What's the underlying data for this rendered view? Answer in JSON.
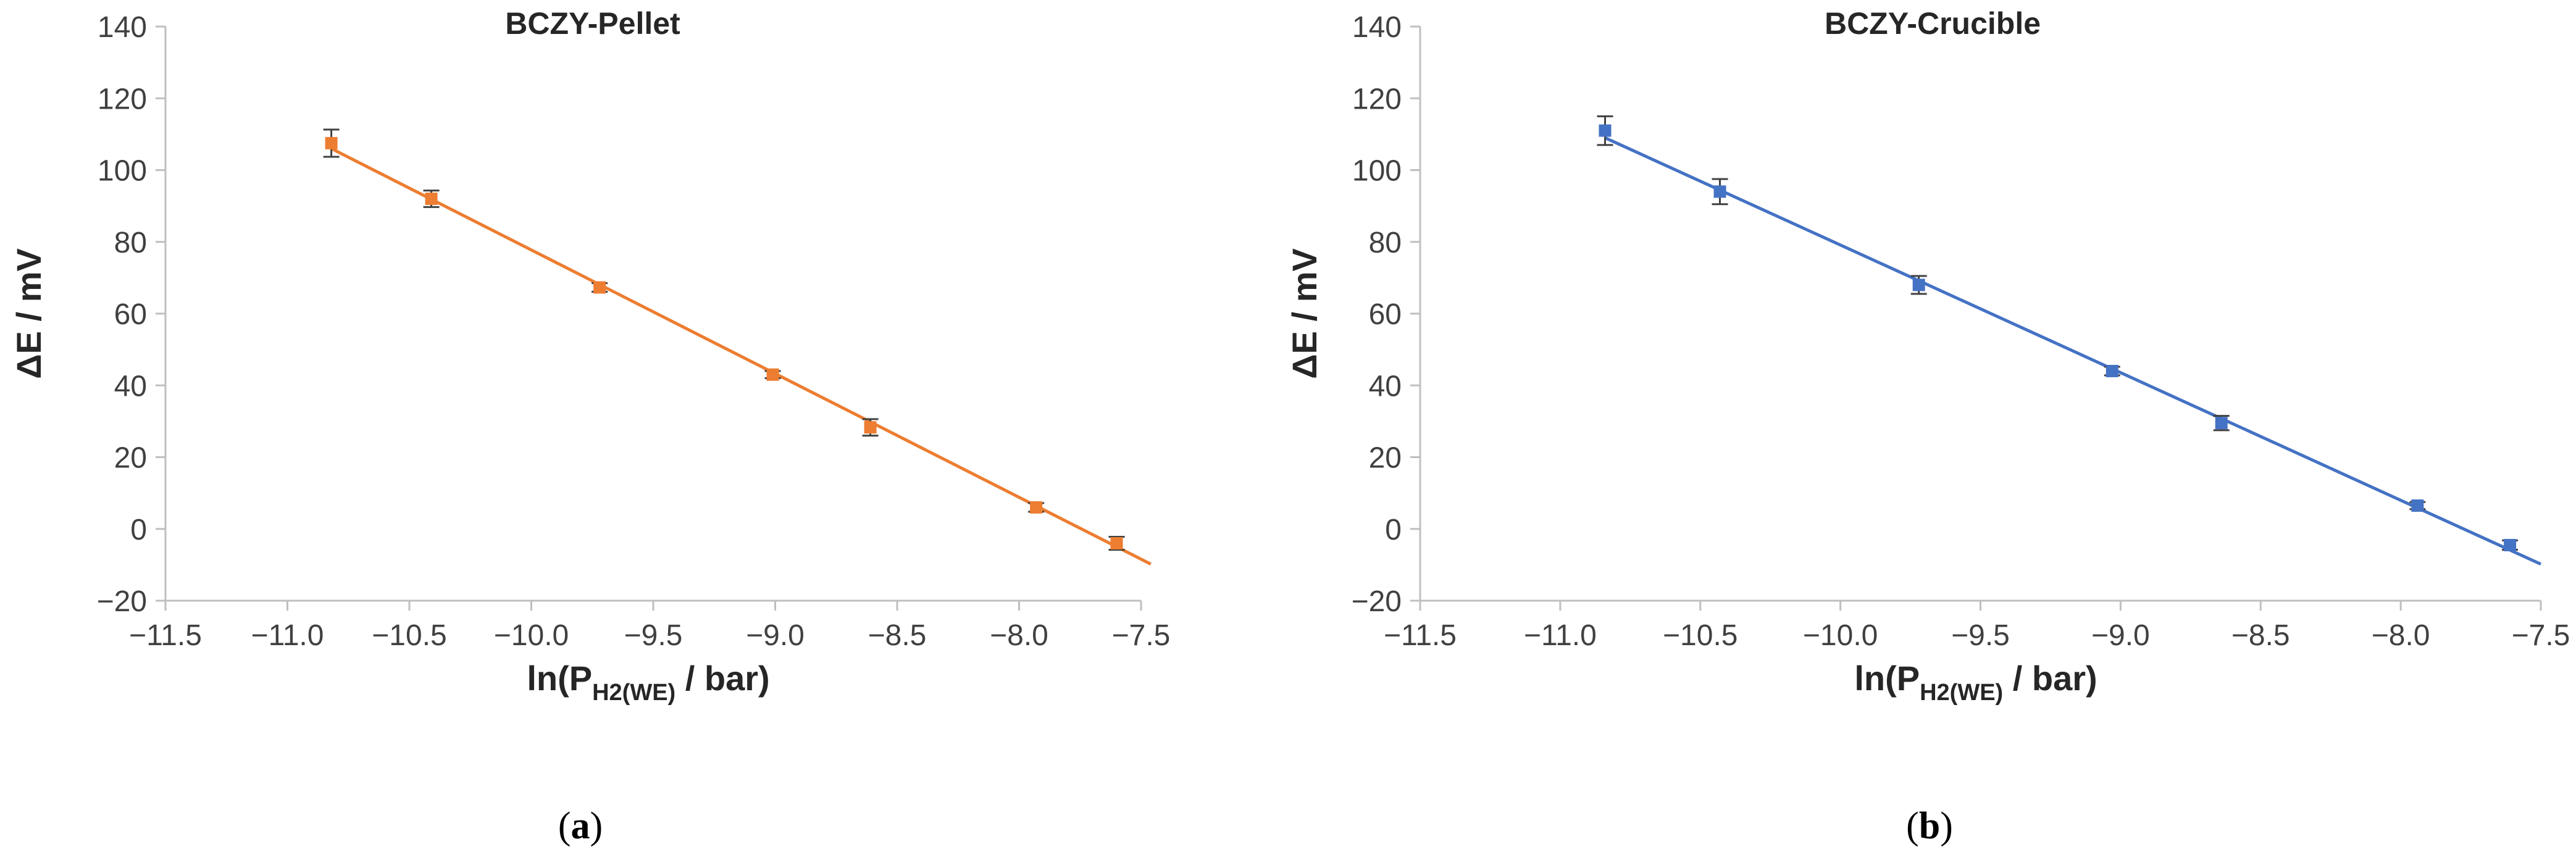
{
  "chart_data": [
    {
      "type": "scatter",
      "title": "BCZY-Pellet",
      "panel_label": "(a)",
      "panel_letter": "a",
      "xlabel": {
        "prefix": "ln(P",
        "sub": "H2(WE)",
        "suffix": " / bar)"
      },
      "ylabel": "ΔE / mV",
      "xlim": [
        -11.5,
        -7.5
      ],
      "ylim": [
        -20,
        140
      ],
      "x_ticks": [
        -11.5,
        -11.0,
        -10.5,
        -10.0,
        -9.5,
        -9.0,
        -8.5,
        -8.0,
        -7.5
      ],
      "x_tick_labels": [
        "−11.5",
        "−11.0",
        "−10.5",
        "−10.0",
        "−9.5",
        "−9.0",
        "−8.5",
        "−8.0",
        "−7.5"
      ],
      "y_ticks": [
        -20,
        0,
        20,
        40,
        60,
        80,
        100,
        120,
        140
      ],
      "y_tick_labels": [
        "−20",
        "0",
        "20",
        "40",
        "60",
        "80",
        "100",
        "120",
        "140"
      ],
      "color": "#ED7D31",
      "points": [
        {
          "x": -10.82,
          "y": 107.5,
          "err": 3.8
        },
        {
          "x": -10.41,
          "y": 92.0,
          "err": 2.3
        },
        {
          "x": -9.72,
          "y": 67.3,
          "err": 1.2
        },
        {
          "x": -9.01,
          "y": 43.0,
          "err": 1.0
        },
        {
          "x": -8.61,
          "y": 28.3,
          "err": 2.3
        },
        {
          "x": -7.93,
          "y": 6.0,
          "err": 1.2
        },
        {
          "x": -7.6,
          "y": -4.0,
          "err": 1.8
        }
      ],
      "fit": {
        "x": [
          -10.82,
          -7.46
        ],
        "y": [
          106.0,
          -9.8
        ]
      }
    },
    {
      "type": "scatter",
      "title": "BCZY-Crucible",
      "panel_label": "(b)",
      "panel_letter": "b",
      "xlabel": {
        "prefix": "ln(P",
        "sub": "H2(WE)",
        "suffix": " / bar)"
      },
      "ylabel": "ΔE / mV",
      "xlim": [
        -11.5,
        -7.5
      ],
      "ylim": [
        -20,
        140
      ],
      "x_ticks": [
        -11.5,
        -11.0,
        -10.5,
        -10.0,
        -9.5,
        -9.0,
        -8.5,
        -8.0,
        -7.5
      ],
      "x_tick_labels": [
        "−11.5",
        "−11.0",
        "−10.5",
        "−10.0",
        "−9.5",
        "−9.0",
        "−8.5",
        "−8.0",
        "−7.5"
      ],
      "y_ticks": [
        -20,
        0,
        20,
        40,
        60,
        80,
        100,
        120,
        140
      ],
      "y_tick_labels": [
        "−20",
        "0",
        "20",
        "40",
        "60",
        "80",
        "100",
        "120",
        "140"
      ],
      "color": "#4472C4",
      "points": [
        {
          "x": -10.84,
          "y": 111.0,
          "err": 4.0
        },
        {
          "x": -10.43,
          "y": 94.0,
          "err": 3.5
        },
        {
          "x": -9.72,
          "y": 68.0,
          "err": 2.5
        },
        {
          "x": -9.03,
          "y": 44.0,
          "err": 1.2
        },
        {
          "x": -8.64,
          "y": 29.5,
          "err": 2.0
        },
        {
          "x": -7.94,
          "y": 6.5,
          "err": 1.0
        },
        {
          "x": -7.61,
          "y": -4.5,
          "err": 1.3
        }
      ],
      "fit": {
        "x": [
          -10.84,
          -7.5
        ],
        "y": [
          109.0,
          -9.8
        ]
      }
    }
  ]
}
